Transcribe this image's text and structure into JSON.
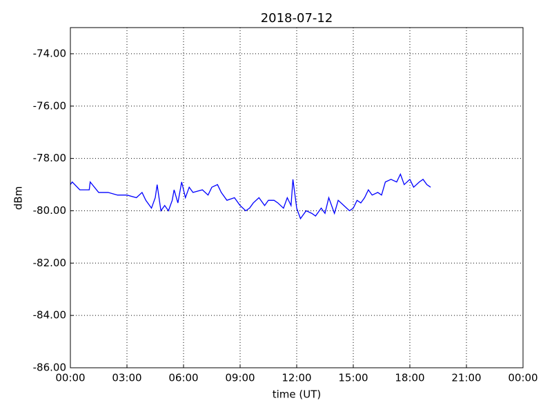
{
  "chart_data": {
    "type": "line",
    "title": "2018-07-12",
    "x_label": "time (UT)",
    "y_label": "dBm",
    "x": [
      0,
      0.1,
      0.5,
      1.0,
      1.05,
      1.5,
      2,
      2.5,
      3,
      3.5,
      3.8,
      4.0,
      4.3,
      4.5,
      4.6,
      4.8,
      5.0,
      5.2,
      5.4,
      5.5,
      5.7,
      5.9,
      6.1,
      6.3,
      6.5,
      7,
      7.3,
      7.5,
      7.8,
      8,
      8.3,
      8.7,
      9,
      9.3,
      9.5,
      9.7,
      10,
      10.3,
      10.5,
      10.8,
      11,
      11.3,
      11.5,
      11.7,
      11.8,
      12,
      12.2,
      12.5,
      12.8,
      13,
      13.3,
      13.5,
      13.7,
      14,
      14.2,
      14.5,
      14.8,
      15,
      15.2,
      15.4,
      15.6,
      15.8,
      16,
      16.3,
      16.5,
      16.7,
      17,
      17.3,
      17.5,
      17.7,
      18,
      18.2,
      18.5,
      18.7,
      18.9,
      19.1
    ],
    "series": [
      {
        "name": "dBm",
        "color": "#0000ff",
        "values": [
          -79.0,
          -78.9,
          -79.2,
          -79.2,
          -78.9,
          -79.3,
          -79.3,
          -79.4,
          -79.4,
          -79.5,
          -79.3,
          -79.6,
          -79.9,
          -79.5,
          -79.0,
          -80.0,
          -79.8,
          -80.0,
          -79.6,
          -79.2,
          -79.7,
          -78.9,
          -79.5,
          -79.1,
          -79.3,
          -79.2,
          -79.4,
          -79.1,
          -79.0,
          -79.3,
          -79.6,
          -79.5,
          -79.8,
          -80.0,
          -79.9,
          -79.7,
          -79.5,
          -79.8,
          -79.6,
          -79.6,
          -79.7,
          -79.9,
          -79.5,
          -79.8,
          -78.8,
          -79.9,
          -80.3,
          -80.0,
          -80.1,
          -80.2,
          -79.9,
          -80.1,
          -79.5,
          -80.1,
          -79.6,
          -79.8,
          -80.0,
          -79.9,
          -79.6,
          -79.7,
          -79.5,
          -79.2,
          -79.4,
          -79.3,
          -79.4,
          -78.9,
          -78.8,
          -78.9,
          -78.6,
          -79.0,
          -78.8,
          -79.1,
          -78.9,
          -78.8,
          -79.0,
          -79.1
        ]
      }
    ],
    "xlim": [
      0,
      24
    ],
    "xticks": [
      {
        "value": 0,
        "label": "00:00"
      },
      {
        "value": 3,
        "label": "03:00"
      },
      {
        "value": 6,
        "label": "06:00"
      },
      {
        "value": 9,
        "label": "09:00"
      },
      {
        "value": 12,
        "label": "12:00"
      },
      {
        "value": 15,
        "label": "15:00"
      },
      {
        "value": 18,
        "label": "18:00"
      },
      {
        "value": 21,
        "label": "21:00"
      },
      {
        "value": 24,
        "label": "00:00"
      }
    ],
    "ylim": [
      -86,
      -73
    ],
    "yticks": [
      {
        "value": -86,
        "label": "-86.00"
      },
      {
        "value": -84,
        "label": "-84.00"
      },
      {
        "value": -82,
        "label": "-82.00"
      },
      {
        "value": -80,
        "label": "-80.00"
      },
      {
        "value": -78,
        "label": "-78.00"
      },
      {
        "value": -76,
        "label": "-76.00"
      },
      {
        "value": -74,
        "label": "-74.00"
      }
    ],
    "grid": true
  }
}
